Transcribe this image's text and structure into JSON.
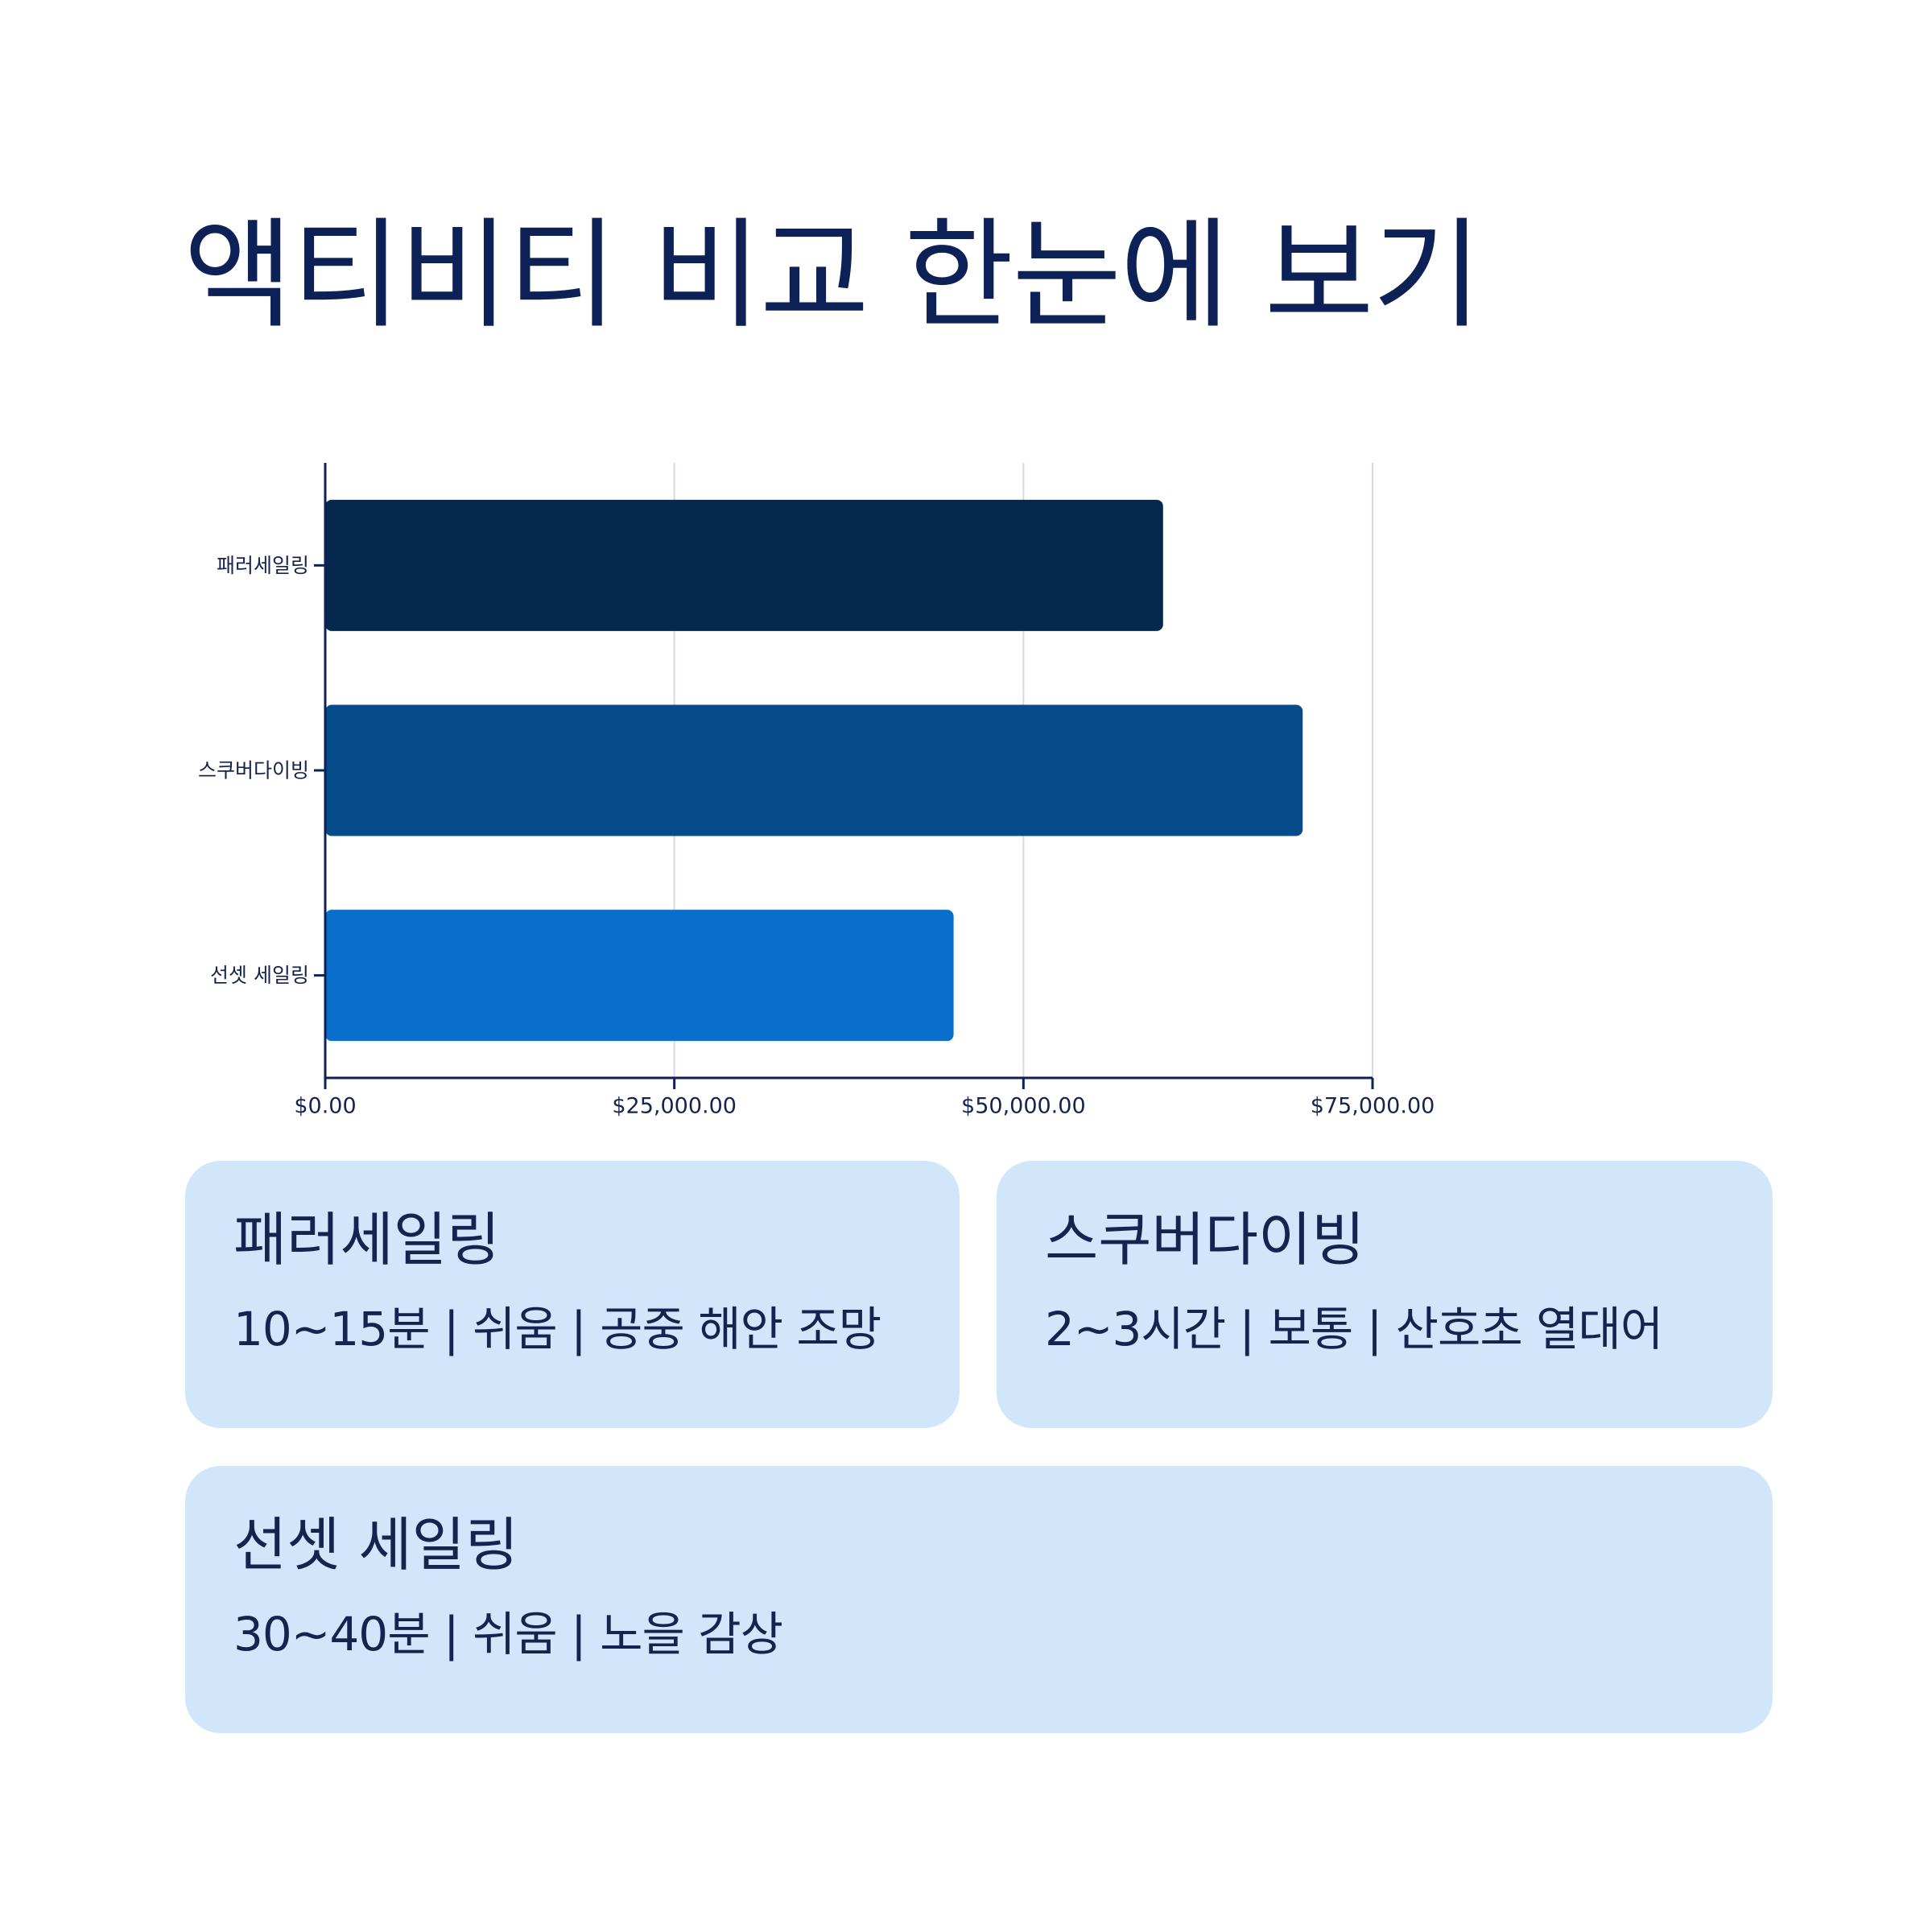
{
  "title": "액티비티 비교 한눈에 보기",
  "chart_data": {
    "type": "bar",
    "orientation": "horizontal",
    "categories": [
      "패러세일링",
      "스쿠버다이빙",
      "선셋 세일링"
    ],
    "values": [
      60000,
      70000,
      45000
    ],
    "colors": [
      "#04284e",
      "#064b8a",
      "#0a6ecc"
    ],
    "xlim": [
      0,
      75000
    ],
    "x_ticks": [
      0,
      25000,
      50000,
      75000
    ],
    "x_tick_labels": [
      "$0.00",
      "$25,000.00",
      "$50,000.00",
      "$75,000.00"
    ],
    "xlabel": "",
    "ylabel": "",
    "grid": "vertical"
  },
  "cards": [
    {
      "title": "패러세일링",
      "desc": "10~15분 | 쉬움 | 공중 해안 조망"
    },
    {
      "title": "스쿠버다이빙",
      "desc": "2~3시간 | 보통 | 산호초 열대어"
    },
    {
      "title": "선셋 세일링",
      "desc": "30~40분 | 쉬움 | 노을 감상"
    }
  ]
}
